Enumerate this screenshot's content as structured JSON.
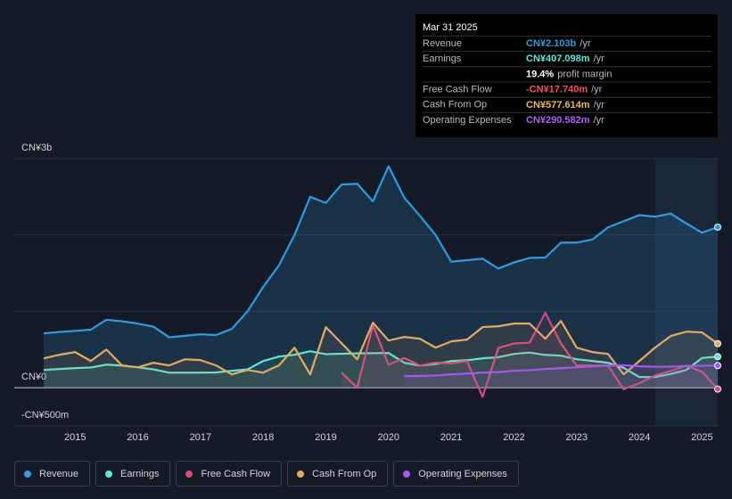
{
  "chart_data": {
    "type": "line",
    "x": [
      2014.5,
      2014.75,
      2015,
      2015.25,
      2015.5,
      2015.75,
      2016,
      2016.25,
      2016.5,
      2016.75,
      2017,
      2017.25,
      2017.5,
      2017.75,
      2018,
      2018.25,
      2018.5,
      2018.75,
      2019,
      2019.25,
      2019.5,
      2019.75,
      2020,
      2020.25,
      2020.5,
      2020.75,
      2021,
      2021.25,
      2021.5,
      2021.75,
      2022,
      2022.25,
      2022.5,
      2022.75,
      2023,
      2023.25,
      2023.5,
      2023.75,
      2024,
      2024.25,
      2024.5,
      2024.75,
      2025,
      2025.25
    ],
    "series": [
      {
        "name": "Revenue",
        "color": "#2d9be6",
        "values": [
          712,
          730,
          745,
          760,
          890,
          870,
          840,
          800,
          660,
          680,
          700,
          690,
          770,
          1000,
          1320,
          1600,
          2000,
          2500,
          2420,
          2660,
          2670,
          2440,
          2900,
          2490,
          2250,
          2000,
          1650,
          1670,
          1690,
          1560,
          1640,
          1700,
          1705,
          1900,
          1900,
          1940,
          2100,
          2180,
          2260,
          2240,
          2280,
          2150,
          2030,
          2103
        ]
      },
      {
        "name": "Earnings",
        "color": "#5ce8d0",
        "values": [
          233,
          245,
          257,
          265,
          303,
          290,
          268,
          240,
          198,
          198,
          198,
          200,
          222,
          240,
          350,
          408,
          432,
          478,
          440,
          445,
          450,
          452,
          455,
          327,
          290,
          310,
          350,
          360,
          385,
          400,
          443,
          460,
          430,
          420,
          373,
          350,
          327,
          260,
          140,
          140,
          180,
          233,
          390,
          407.098
        ]
      },
      {
        "name": "Free Cash Flow",
        "color": "#d6487e",
        "values": [
          null,
          null,
          null,
          null,
          null,
          null,
          null,
          null,
          null,
          null,
          null,
          null,
          null,
          null,
          null,
          null,
          null,
          null,
          null,
          198,
          0,
          820,
          300,
          390,
          290,
          330,
          320,
          350,
          -120,
          520,
          580,
          590,
          980,
          580,
          290,
          290,
          290,
          -20,
          60,
          160,
          220,
          290,
          210,
          -17.74
        ]
      },
      {
        "name": "Cash From Op",
        "color": "#e8a95c",
        "values": [
          385,
          432,
          467,
          350,
          500,
          292,
          268,
          327,
          292,
          373,
          362,
          292,
          175,
          233,
          198,
          292,
          525,
          175,
          794,
          583,
          373,
          852,
          618,
          665,
          642,
          525,
          607,
          630,
          794,
          805,
          840,
          840,
          642,
          875,
          525,
          467,
          443,
          175,
          350,
          525,
          677,
          735,
          724,
          577.614
        ]
      },
      {
        "name": "Operating Expenses",
        "color": "#a855f7",
        "values": [
          null,
          null,
          null,
          null,
          null,
          null,
          null,
          null,
          null,
          null,
          null,
          null,
          null,
          null,
          null,
          null,
          null,
          null,
          null,
          null,
          null,
          null,
          null,
          152,
          155,
          160,
          175,
          185,
          198,
          205,
          222,
          230,
          245,
          255,
          268,
          280,
          292,
          295,
          280,
          275,
          275,
          285,
          288,
          290.582
        ]
      }
    ],
    "xlim": [
      2014.03,
      2025.25
    ],
    "xticks": [
      2015,
      2016,
      2017,
      2018,
      2019,
      2020,
      2021,
      2022,
      2023,
      2024,
      2025
    ],
    "ylim": [
      -500,
      3000
    ],
    "yticks": [
      {
        "value": 3000,
        "label": "CN¥3b"
      },
      {
        "value": 0,
        "label": "CN¥0"
      },
      {
        "value": -500,
        "label": "-CN¥500m"
      }
    ],
    "minor_yticks": [
      1000,
      2000
    ],
    "grid": true,
    "legend": "bottom-left",
    "tooltip": {
      "date": "Mar 31 2025",
      "rows": [
        {
          "label": "Revenue",
          "value": "CN¥2.103b",
          "suffix": "/yr",
          "color": "#2d9be6"
        },
        {
          "label": "Earnings",
          "value": "CN¥407.098m",
          "suffix": "/yr",
          "color": "#5ce8d0"
        },
        {
          "value": "19.4%",
          "suffix": "profit margin",
          "color": "#ffffff"
        },
        {
          "label": "Free Cash Flow",
          "value": "-CN¥17.740m",
          "suffix": "/yr",
          "color": "#ff4d5e"
        },
        {
          "label": "Cash From Op",
          "value": "CN¥577.614m",
          "suffix": "/yr",
          "color": "#f0b56b"
        },
        {
          "label": "Operating Expenses",
          "value": "CN¥290.582m",
          "suffix": "/yr",
          "color": "#b45cff"
        }
      ]
    }
  }
}
